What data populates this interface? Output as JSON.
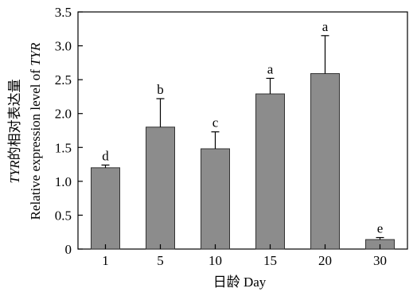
{
  "chart_data": {
    "type": "bar",
    "categories": [
      "1",
      "5",
      "10",
      "15",
      "20",
      "30"
    ],
    "values": [
      1.2,
      1.8,
      1.48,
      2.29,
      2.59,
      0.14
    ],
    "errors": [
      0.04,
      0.42,
      0.25,
      0.23,
      0.56,
      0.03
    ],
    "significance": [
      "d",
      "b",
      "c",
      "a",
      "a",
      "e"
    ],
    "yticks": [
      "0",
      "0.5",
      "1.0",
      "1.5",
      "2.0",
      "2.5",
      "3.0",
      "3.5"
    ],
    "ylim": [
      0,
      3.5
    ],
    "xlabel": "日龄 Day",
    "ylabel_line1_italic": "TYR",
    "ylabel_line1_rest": "的相对表达量",
    "ylabel_line2_prefix": "Relative expression level of ",
    "ylabel_line2_italic": "TYR",
    "grid": false,
    "bar_color": "#8c8c8c"
  }
}
